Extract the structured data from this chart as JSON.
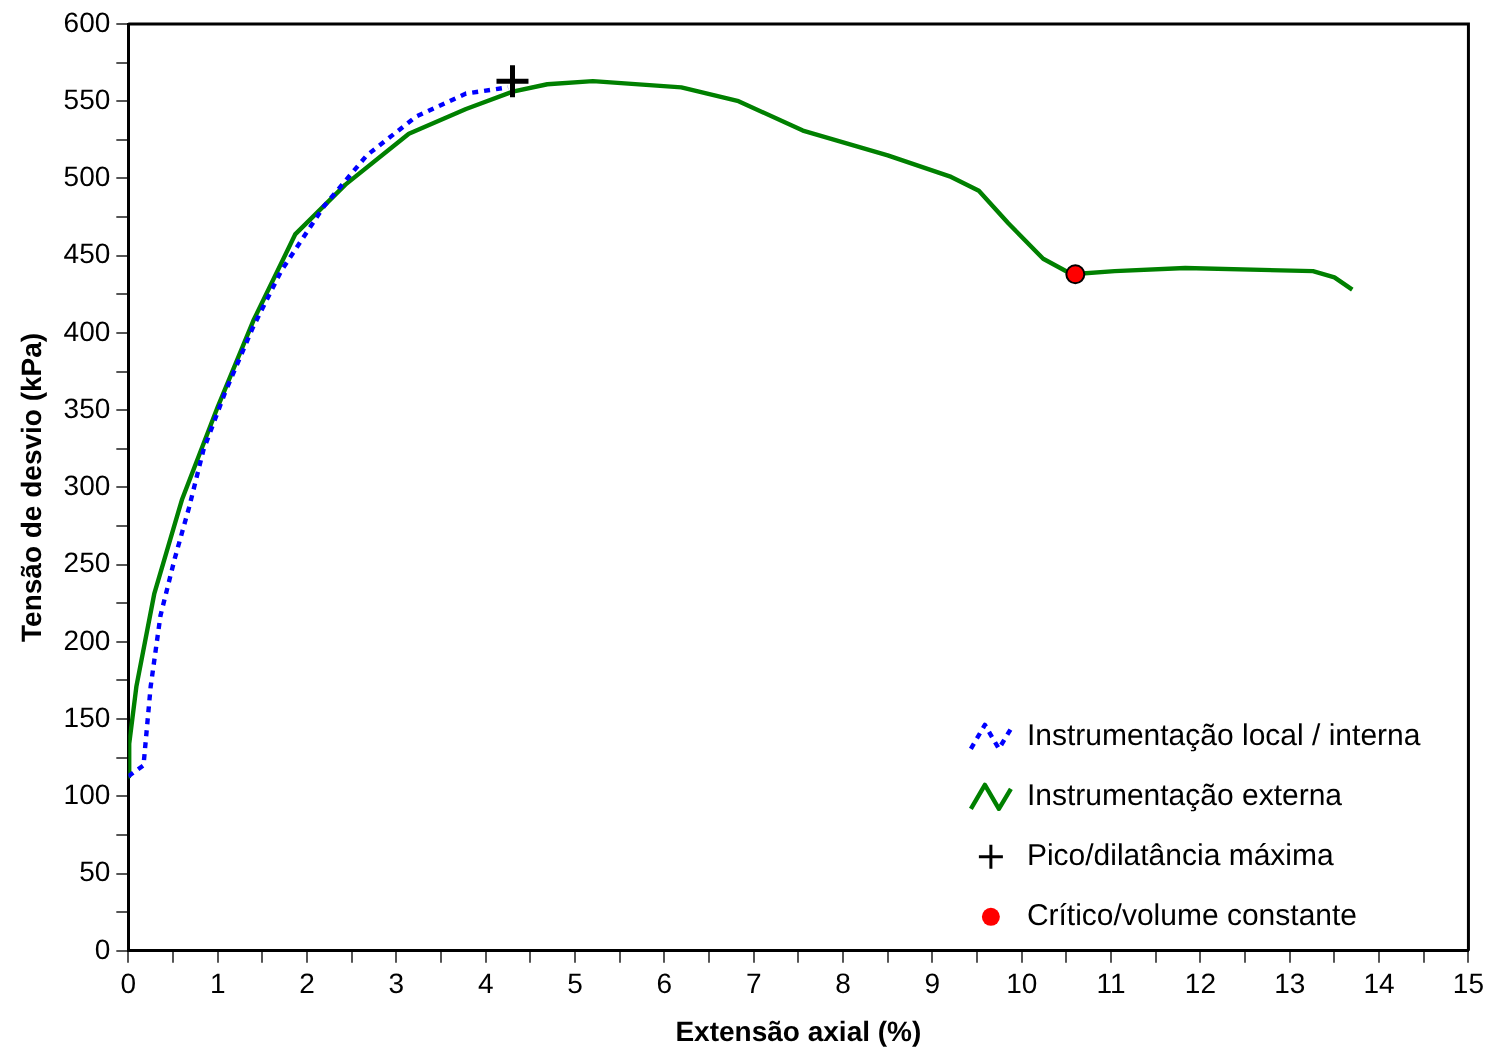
{
  "chart_data": {
    "type": "line",
    "xlabel": "Extensão axial (%)",
    "ylabel": "Tensão de desvio (kPa)",
    "xlim": [
      0,
      15
    ],
    "xticks": [
      0,
      {
        "value": 0.5,
        "label": null
      },
      1,
      {
        "value": 1.5,
        "label": null
      },
      2,
      {
        "value": 2.5,
        "label": null
      },
      3,
      {
        "value": 3.5,
        "label": null
      },
      4,
      {
        "value": 4.5,
        "label": null
      },
      5,
      {
        "value": 5.5,
        "label": null
      },
      6,
      {
        "value": 6.5,
        "label": null
      },
      7,
      {
        "value": 7.5,
        "label": null
      },
      8,
      {
        "value": 8.5,
        "label": null
      },
      9,
      {
        "value": 9.5,
        "label": null
      },
      10,
      {
        "value": 10.5,
        "label": null
      },
      11,
      {
        "value": 11.5,
        "label": null
      },
      12,
      {
        "value": 12.5,
        "label": null
      },
      13,
      {
        "value": 13.5,
        "label": null
      },
      14,
      {
        "value": 14.5,
        "label": null
      },
      15
    ],
    "ylim": [
      0,
      600
    ],
    "yticks": [
      0,
      {
        "value": 25,
        "label": null
      },
      50,
      {
        "value": 75,
        "label": null
      },
      100,
      {
        "value": 125,
        "label": null
      },
      150,
      {
        "value": 175,
        "label": null
      },
      200,
      {
        "value": 225,
        "label": null
      },
      250,
      {
        "value": 275,
        "label": null
      },
      300,
      {
        "value": 325,
        "label": null
      },
      350,
      {
        "value": 375,
        "label": null
      },
      400,
      {
        "value": 425,
        "label": null
      },
      450,
      {
        "value": 475,
        "label": null
      },
      500,
      {
        "value": 525,
        "label": null
      },
      550,
      {
        "value": 575,
        "label": null
      },
      600
    ],
    "grid": false,
    "legend": "bottom right",
    "series": [
      {
        "name": "Instrumentação local / interna",
        "line_style": "dotted",
        "color": "#0000ff",
        "x": [
          0,
          0.17,
          0.25,
          0.36,
          0.52,
          0.68,
          0.84,
          1.08,
          1.39,
          1.71,
          2.19,
          2.67,
          3.22,
          3.78,
          4.25
        ],
        "values": [
          113,
          120,
          171,
          217,
          254,
          287,
          324,
          361,
          403,
          440,
          482,
          515,
          540,
          555,
          559
        ]
      },
      {
        "name": "Instrumentação externa",
        "line_style": "solid",
        "color": "#008000",
        "x": [
          0,
          0.01,
          0.09,
          0.29,
          0.6,
          1.0,
          1.4,
          1.87,
          2.43,
          3.14,
          3.78,
          4.29,
          4.69,
          5.2,
          6.19,
          6.83,
          7.55,
          8.5,
          9.21,
          9.52,
          9.85,
          10.24,
          10.56,
          11.04,
          11.83,
          13.26,
          13.5,
          13.7
        ],
        "values": [
          113,
          134,
          171,
          231,
          292,
          352,
          408,
          464,
          496,
          529,
          545,
          556,
          561,
          563,
          559,
          550,
          531,
          515,
          501,
          492,
          471,
          448,
          438,
          440,
          442,
          440,
          436,
          428
        ]
      },
      {
        "name": "Pico/dilatância máxima",
        "type": "scatter",
        "marker": "cross",
        "color": "#000000",
        "x": [
          4.3
        ],
        "values": [
          563
        ]
      },
      {
        "name": "Crítico/volume constante",
        "type": "scatter",
        "marker": "circle",
        "color": "#ff0000",
        "x": [
          10.6
        ],
        "values": [
          438
        ]
      }
    ]
  }
}
